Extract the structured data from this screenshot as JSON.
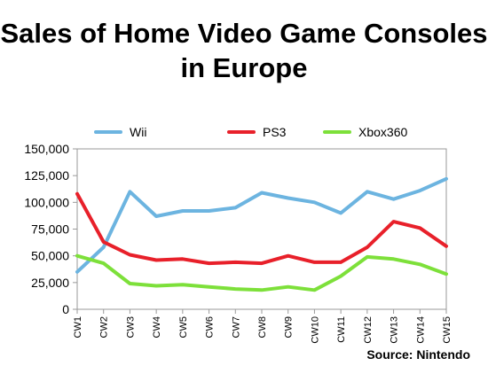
{
  "title_line1": "Sales of Home Video Game Consoles",
  "title_line2": "in Europe",
  "source": "Source: Nintendo",
  "chart_data": {
    "type": "line",
    "title": "Sales of Home Video Game Consoles in Europe",
    "xlabel": "",
    "ylabel": "",
    "ylim": [
      0,
      150000
    ],
    "yticks": [
      0,
      25000,
      50000,
      75000,
      100000,
      125000,
      150000
    ],
    "ytick_labels": [
      "0",
      "25,000",
      "50,000",
      "75,000",
      "100,000",
      "125,000",
      "150,000"
    ],
    "x": [
      "CW1",
      "CW2",
      "CW3",
      "CW4",
      "CW5",
      "CW6",
      "CW7",
      "CW8",
      "CW9",
      "CW10",
      "CW11",
      "CW12",
      "CW13",
      "CW14",
      "CW15"
    ],
    "grid": false,
    "legend_position": "top",
    "series": [
      {
        "name": "Wii",
        "color": "#6CB4E0",
        "values": [
          35000,
          58000,
          110000,
          87000,
          92000,
          92000,
          95000,
          109000,
          104000,
          100000,
          90000,
          110000,
          103000,
          111000,
          122000
        ]
      },
      {
        "name": "PS3",
        "color": "#E8202A",
        "values": [
          108000,
          63000,
          51000,
          46000,
          47000,
          43000,
          44000,
          43000,
          50000,
          44000,
          44000,
          58000,
          82000,
          76000,
          59000
        ]
      },
      {
        "name": "Xbox360",
        "color": "#7DE03A",
        "values": [
          50000,
          43000,
          24000,
          22000,
          23000,
          21000,
          19000,
          18000,
          21000,
          18000,
          31000,
          49000,
          47000,
          42000,
          33000
        ]
      }
    ]
  }
}
